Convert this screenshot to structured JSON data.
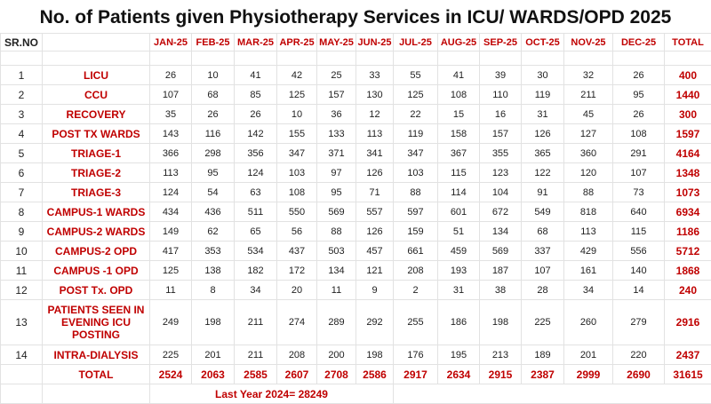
{
  "header": {
    "title": "No. of Patients given Physiotherapy Services in ICU/ WARDS/OPD 2025"
  },
  "table": {
    "columns": [
      "SR.NO",
      null,
      "JAN-25",
      "FEB-25",
      "MAR-25",
      "APR-25",
      "MAY-25",
      "JUN-25",
      "JUL-25",
      "AUG-25",
      "SEP-25",
      "OCT-25",
      "NOV-25",
      "DEC-25",
      "TOTAL"
    ],
    "rows": [
      {
        "sr": 1,
        "label": "LICU",
        "values": [
          26,
          10,
          41,
          42,
          25,
          33,
          55,
          41,
          39,
          30,
          32,
          26
        ],
        "total": 400
      },
      {
        "sr": 2,
        "label": "CCU",
        "values": [
          107,
          68,
          85,
          125,
          157,
          130,
          125,
          108,
          110,
          119,
          211,
          95
        ],
        "total": 1440
      },
      {
        "sr": 3,
        "label": "RECOVERY",
        "values": [
          35,
          26,
          26,
          10,
          36,
          12,
          22,
          15,
          16,
          31,
          45,
          26
        ],
        "total": 300
      },
      {
        "sr": 4,
        "label": "POST TX WARDS",
        "values": [
          143,
          116,
          142,
          155,
          133,
          113,
          119,
          158,
          157,
          126,
          127,
          108
        ],
        "total": 1597
      },
      {
        "sr": 5,
        "label": "TRIAGE-1",
        "values": [
          366,
          298,
          356,
          347,
          371,
          341,
          347,
          367,
          355,
          365,
          360,
          291
        ],
        "total": 4164
      },
      {
        "sr": 6,
        "label": "TRIAGE-2",
        "values": [
          113,
          95,
          124,
          103,
          97,
          126,
          103,
          115,
          123,
          122,
          120,
          107
        ],
        "total": 1348
      },
      {
        "sr": 7,
        "label": "TRIAGE-3",
        "values": [
          124,
          54,
          63,
          108,
          95,
          71,
          88,
          114,
          104,
          91,
          88,
          73
        ],
        "total": 1073
      },
      {
        "sr": 8,
        "label": "CAMPUS-1  WARDS",
        "values": [
          434,
          436,
          511,
          550,
          569,
          557,
          597,
          601,
          672,
          549,
          818,
          640
        ],
        "total": 6934
      },
      {
        "sr": 9,
        "label": "CAMPUS-2  WARDS",
        "values": [
          149,
          62,
          65,
          56,
          88,
          126,
          159,
          51,
          134,
          68,
          113,
          115
        ],
        "total": 1186
      },
      {
        "sr": 10,
        "label": "CAMPUS-2  OPD",
        "values": [
          417,
          353,
          534,
          437,
          503,
          457,
          661,
          459,
          569,
          337,
          429,
          556
        ],
        "total": 5712
      },
      {
        "sr": 11,
        "label": "CAMPUS -1 OPD",
        "values": [
          125,
          138,
          182,
          172,
          134,
          121,
          208,
          193,
          187,
          107,
          161,
          140
        ],
        "total": 1868
      },
      {
        "sr": 12,
        "label": "POST Tx. OPD",
        "values": [
          11,
          8,
          34,
          20,
          11,
          9,
          2,
          31,
          38,
          28,
          34,
          14
        ],
        "total": 240
      },
      {
        "sr": 13,
        "label": "PATIENTS SEEN IN EVENING ICU POSTING",
        "values": [
          249,
          198,
          211,
          274,
          289,
          292,
          255,
          186,
          198,
          225,
          260,
          279
        ],
        "total": 2916
      },
      {
        "sr": 14,
        "label": "INTRA-DIALYSIS",
        "values": [
          225,
          201,
          211,
          208,
          200,
          198,
          176,
          195,
          213,
          189,
          201,
          220
        ],
        "total": 2437
      }
    ],
    "total_row": {
      "label": "TOTAL",
      "values": [
        2524,
        2063,
        2585,
        2607,
        2708,
        2586,
        2917,
        2634,
        2915,
        2387,
        2999,
        2690
      ],
      "total": 31615
    },
    "footer": "Last Year 2024= 28249"
  }
}
